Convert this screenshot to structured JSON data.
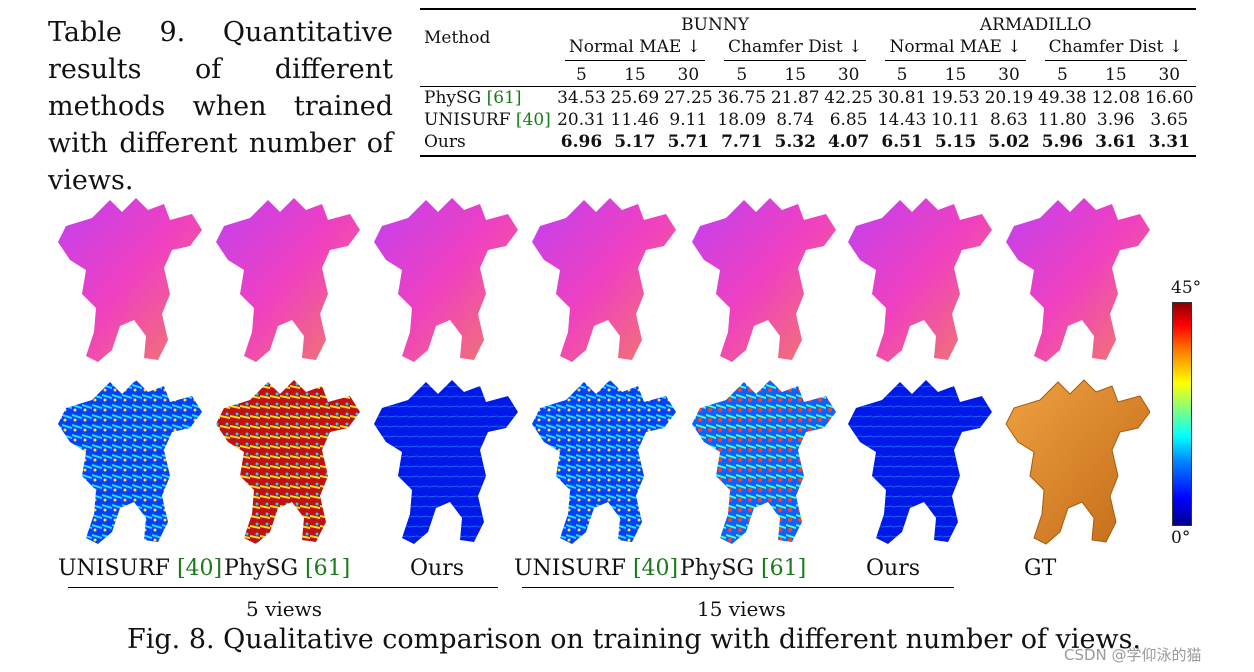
{
  "side_caption": "Table 9. Quantitative results of different methods when trained with different number of views.",
  "table": {
    "method_header": "Method",
    "datasets": [
      "BUNNY",
      "ARMADILLO"
    ],
    "metrics": [
      "Normal MAE ↓",
      "Chamfer Dist ↓",
      "Normal MAE ↓",
      "Chamfer Dist ↓"
    ],
    "views": [
      "5",
      "15",
      "30",
      "5",
      "15",
      "30",
      "5",
      "15",
      "30",
      "5",
      "15",
      "30"
    ],
    "rows": [
      {
        "name": "PhySG",
        "cite": "[61]",
        "bold": false,
        "values": [
          "34.53",
          "25.69",
          "27.25",
          "36.75",
          "21.87",
          "42.25",
          "30.81",
          "19.53",
          "20.19",
          "49.38",
          "12.08",
          "16.60"
        ]
      },
      {
        "name": "UNISURF",
        "cite": "[40]",
        "bold": false,
        "values": [
          "20.31",
          "11.46",
          "9.11",
          "18.09",
          "8.74",
          "6.85",
          "14.43",
          "10.11",
          "8.63",
          "11.80",
          "3.96",
          "3.65"
        ]
      },
      {
        "name": "Ours",
        "cite": "",
        "bold": true,
        "values": [
          "6.96",
          "5.17",
          "5.71",
          "7.71",
          "5.32",
          "4.07",
          "6.51",
          "5.15",
          "5.02",
          "5.96",
          "3.61",
          "3.31"
        ]
      }
    ]
  },
  "figure": {
    "columns": [
      {
        "name": "UNISURF",
        "cite": "[40]"
      },
      {
        "name": "PhySG",
        "cite": "[61]"
      },
      {
        "name": "Ours",
        "cite": ""
      },
      {
        "name": "UNISURF",
        "cite": "[40]"
      },
      {
        "name": "PhySG",
        "cite": "[61]"
      },
      {
        "name": "Ours",
        "cite": ""
      },
      {
        "name": "GT",
        "cite": ""
      }
    ],
    "group_labels": [
      "5 views",
      "15 views"
    ],
    "colorbar": {
      "max": "45°",
      "min": "0°"
    },
    "caption": "Fig. 8. Qualitative comparison on training with different number of views."
  },
  "watermark": "CSDN @学仰泳的猫",
  "colors": {
    "cite": "#1a7a1a",
    "normal_map": "#e040d0",
    "gt": "#e08a2a",
    "error_low": "#0010e0"
  }
}
